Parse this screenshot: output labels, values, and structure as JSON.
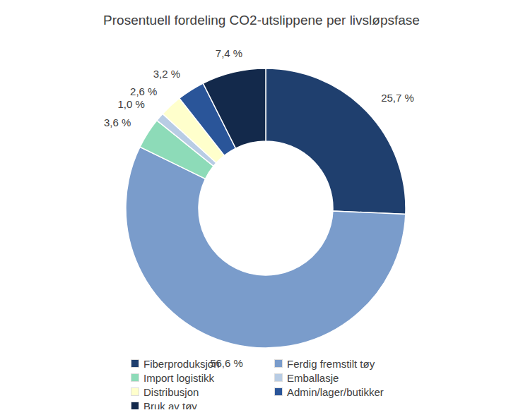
{
  "chart_data": {
    "type": "donut",
    "title": "Prosentuell fordeling CO2-utslippene per livsløpsfase",
    "categories": [
      "Fiberproduksjon",
      "Ferdig fremstilt tøy",
      "Import logistikk",
      "Emballasje",
      "Distribusjon",
      "Admin/lager/butikker",
      "Bruk av tøy"
    ],
    "values": [
      25.7,
      56.6,
      3.6,
      1.0,
      2.6,
      3.2,
      7.4
    ],
    "value_labels": [
      "25,7 %",
      "56,6 %",
      "3,6 %",
      "1,0 %",
      "2,6 %",
      "3,2 %",
      "7,4 %"
    ],
    "colors": [
      "#1f3f6e",
      "#7a9ccb",
      "#8ddbb8",
      "#b8cce4",
      "#ffffcc",
      "#2a5599",
      "#13294b"
    ],
    "data_labels": true,
    "legend": "bottom"
  }
}
